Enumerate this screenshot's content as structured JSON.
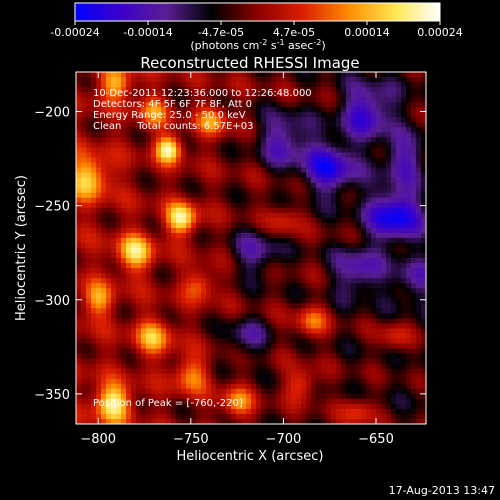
{
  "colorbar": {
    "ticks": [
      "-0.00024",
      "-0.00014",
      "-4.7e-05",
      "4.7e-05",
      "0.00014",
      "0.00024"
    ],
    "units_main": "(photons cm",
    "units_exp1": "-2",
    "units_mid": " s",
    "units_exp2": "-1",
    "units_end": " asec",
    "units_exp3": "-2",
    "units_close": ")",
    "range": [
      -0.00024,
      0.00024
    ],
    "colors": [
      "#0000ff",
      "#3c00c8",
      "#5a1e96",
      "#000000",
      "#8c0000",
      "#dc1e00",
      "#ff8c00",
      "#ffe650",
      "#ffffff"
    ]
  },
  "chart_data": {
    "type": "heatmap",
    "title": "Reconstructed RHESSI Image",
    "xlabel": "Heliocentric X (arcsec)",
    "ylabel": "Heliocentric Y (arcsec)",
    "xlim": [
      -812,
      -623
    ],
    "ylim": [
      -366,
      -179
    ],
    "xticks": [
      -800,
      -750,
      -700,
      -650
    ],
    "yticks": [
      -200,
      -250,
      -300,
      -350
    ],
    "xtick_labels": [
      "−800",
      "−750",
      "−700",
      "−650"
    ],
    "ytick_labels": [
      "−200",
      "−250",
      "−300",
      "−350"
    ],
    "annotations": [
      "10-Dec-2011 12:23:36.000 to 12:26:48.000",
      "Detectors: 4F 5F 6F 7F 8F, Att 0",
      "Energy Range: 25.0 - 50.0 keV",
      "Clean     Total counts: 6.57E+03",
      "Position of Peak = [-760,-220]"
    ],
    "peak": [
      -760,
      -220
    ],
    "grid": false,
    "sources": [
      {
        "x": -762,
        "y": -220,
        "amp": 1.0,
        "w": 5
      },
      {
        "x": -755,
        "y": -257,
        "amp": 0.95,
        "w": 6
      },
      {
        "x": -792,
        "y": -355,
        "amp": 0.95,
        "w": 7
      },
      {
        "x": -780,
        "y": -275,
        "amp": 0.8,
        "w": 7
      },
      {
        "x": -805,
        "y": -235,
        "amp": 0.75,
        "w": 8
      },
      {
        "x": -800,
        "y": -300,
        "amp": 0.6,
        "w": 6
      },
      {
        "x": -790,
        "y": -185,
        "amp": 0.7,
        "w": 6
      },
      {
        "x": -770,
        "y": -320,
        "amp": 0.65,
        "w": 7
      },
      {
        "x": -745,
        "y": -292,
        "amp": 0.5,
        "w": 6
      },
      {
        "x": -738,
        "y": -205,
        "amp": 0.6,
        "w": 6
      },
      {
        "x": -750,
        "y": -340,
        "amp": 0.55,
        "w": 7
      },
      {
        "x": -725,
        "y": -355,
        "amp": 0.6,
        "w": 6
      },
      {
        "x": -685,
        "y": -312,
        "amp": 0.55,
        "w": 6
      },
      {
        "x": -690,
        "y": -345,
        "amp": 0.5,
        "w": 6
      },
      {
        "x": -660,
        "y": -360,
        "amp": 0.45,
        "w": 6
      },
      {
        "x": -700,
        "y": -258,
        "amp": 0.35,
        "w": 6
      },
      {
        "x": -640,
        "y": -320,
        "amp": 0.4,
        "w": 6
      },
      {
        "x": -770,
        "y": -200,
        "amp": 0.5,
        "w": 6
      },
      {
        "x": -675,
        "y": -230,
        "amp": -0.8,
        "w": 10
      },
      {
        "x": -640,
        "y": -255,
        "amp": -0.9,
        "w": 10
      },
      {
        "x": -700,
        "y": -215,
        "amp": -0.6,
        "w": 10
      },
      {
        "x": -655,
        "y": -200,
        "amp": -0.7,
        "w": 10
      },
      {
        "x": -715,
        "y": -275,
        "amp": -0.5,
        "w": 9
      },
      {
        "x": -660,
        "y": -285,
        "amp": -0.55,
        "w": 9
      },
      {
        "x": -630,
        "y": -290,
        "amp": -0.4,
        "w": 8
      },
      {
        "x": -720,
        "y": -320,
        "amp": -0.45,
        "w": 8
      },
      {
        "x": -635,
        "y": -225,
        "amp": -0.5,
        "w": 8
      }
    ]
  },
  "timestamp": "17-Aug-2013 13:47"
}
